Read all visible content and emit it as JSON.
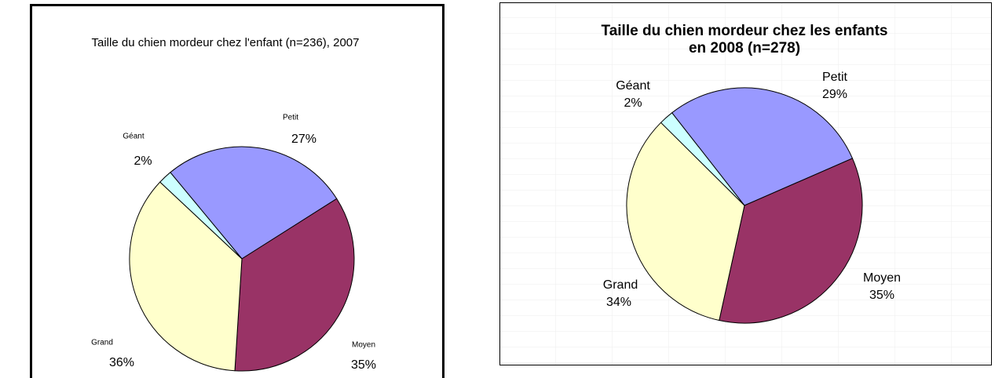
{
  "chart_data": [
    {
      "type": "pie",
      "title": [
        "Taille du chien mordeur chez l'enfant (n=236), 2007"
      ],
      "categories": [
        "Petit",
        "Moyen",
        "Grand",
        "Géant"
      ],
      "values": [
        27,
        35,
        36,
        2
      ],
      "value_labels": [
        "27%",
        "35%",
        "36%",
        "2%"
      ],
      "colors": [
        "#9999ff",
        "#993366",
        "#ffffcc",
        "#ccffff"
      ]
    },
    {
      "type": "pie",
      "title": [
        "Taille du chien mordeur chez les enfants",
        "en 2008 (n=278)"
      ],
      "categories": [
        "Petit",
        "Moyen",
        "Grand",
        "Géant"
      ],
      "values": [
        29,
        35,
        34,
        2
      ],
      "value_labels": [
        "29%",
        "35%",
        "34%",
        "2%"
      ],
      "colors": [
        "#9999ff",
        "#993366",
        "#ffffcc",
        "#ccffff"
      ]
    }
  ]
}
